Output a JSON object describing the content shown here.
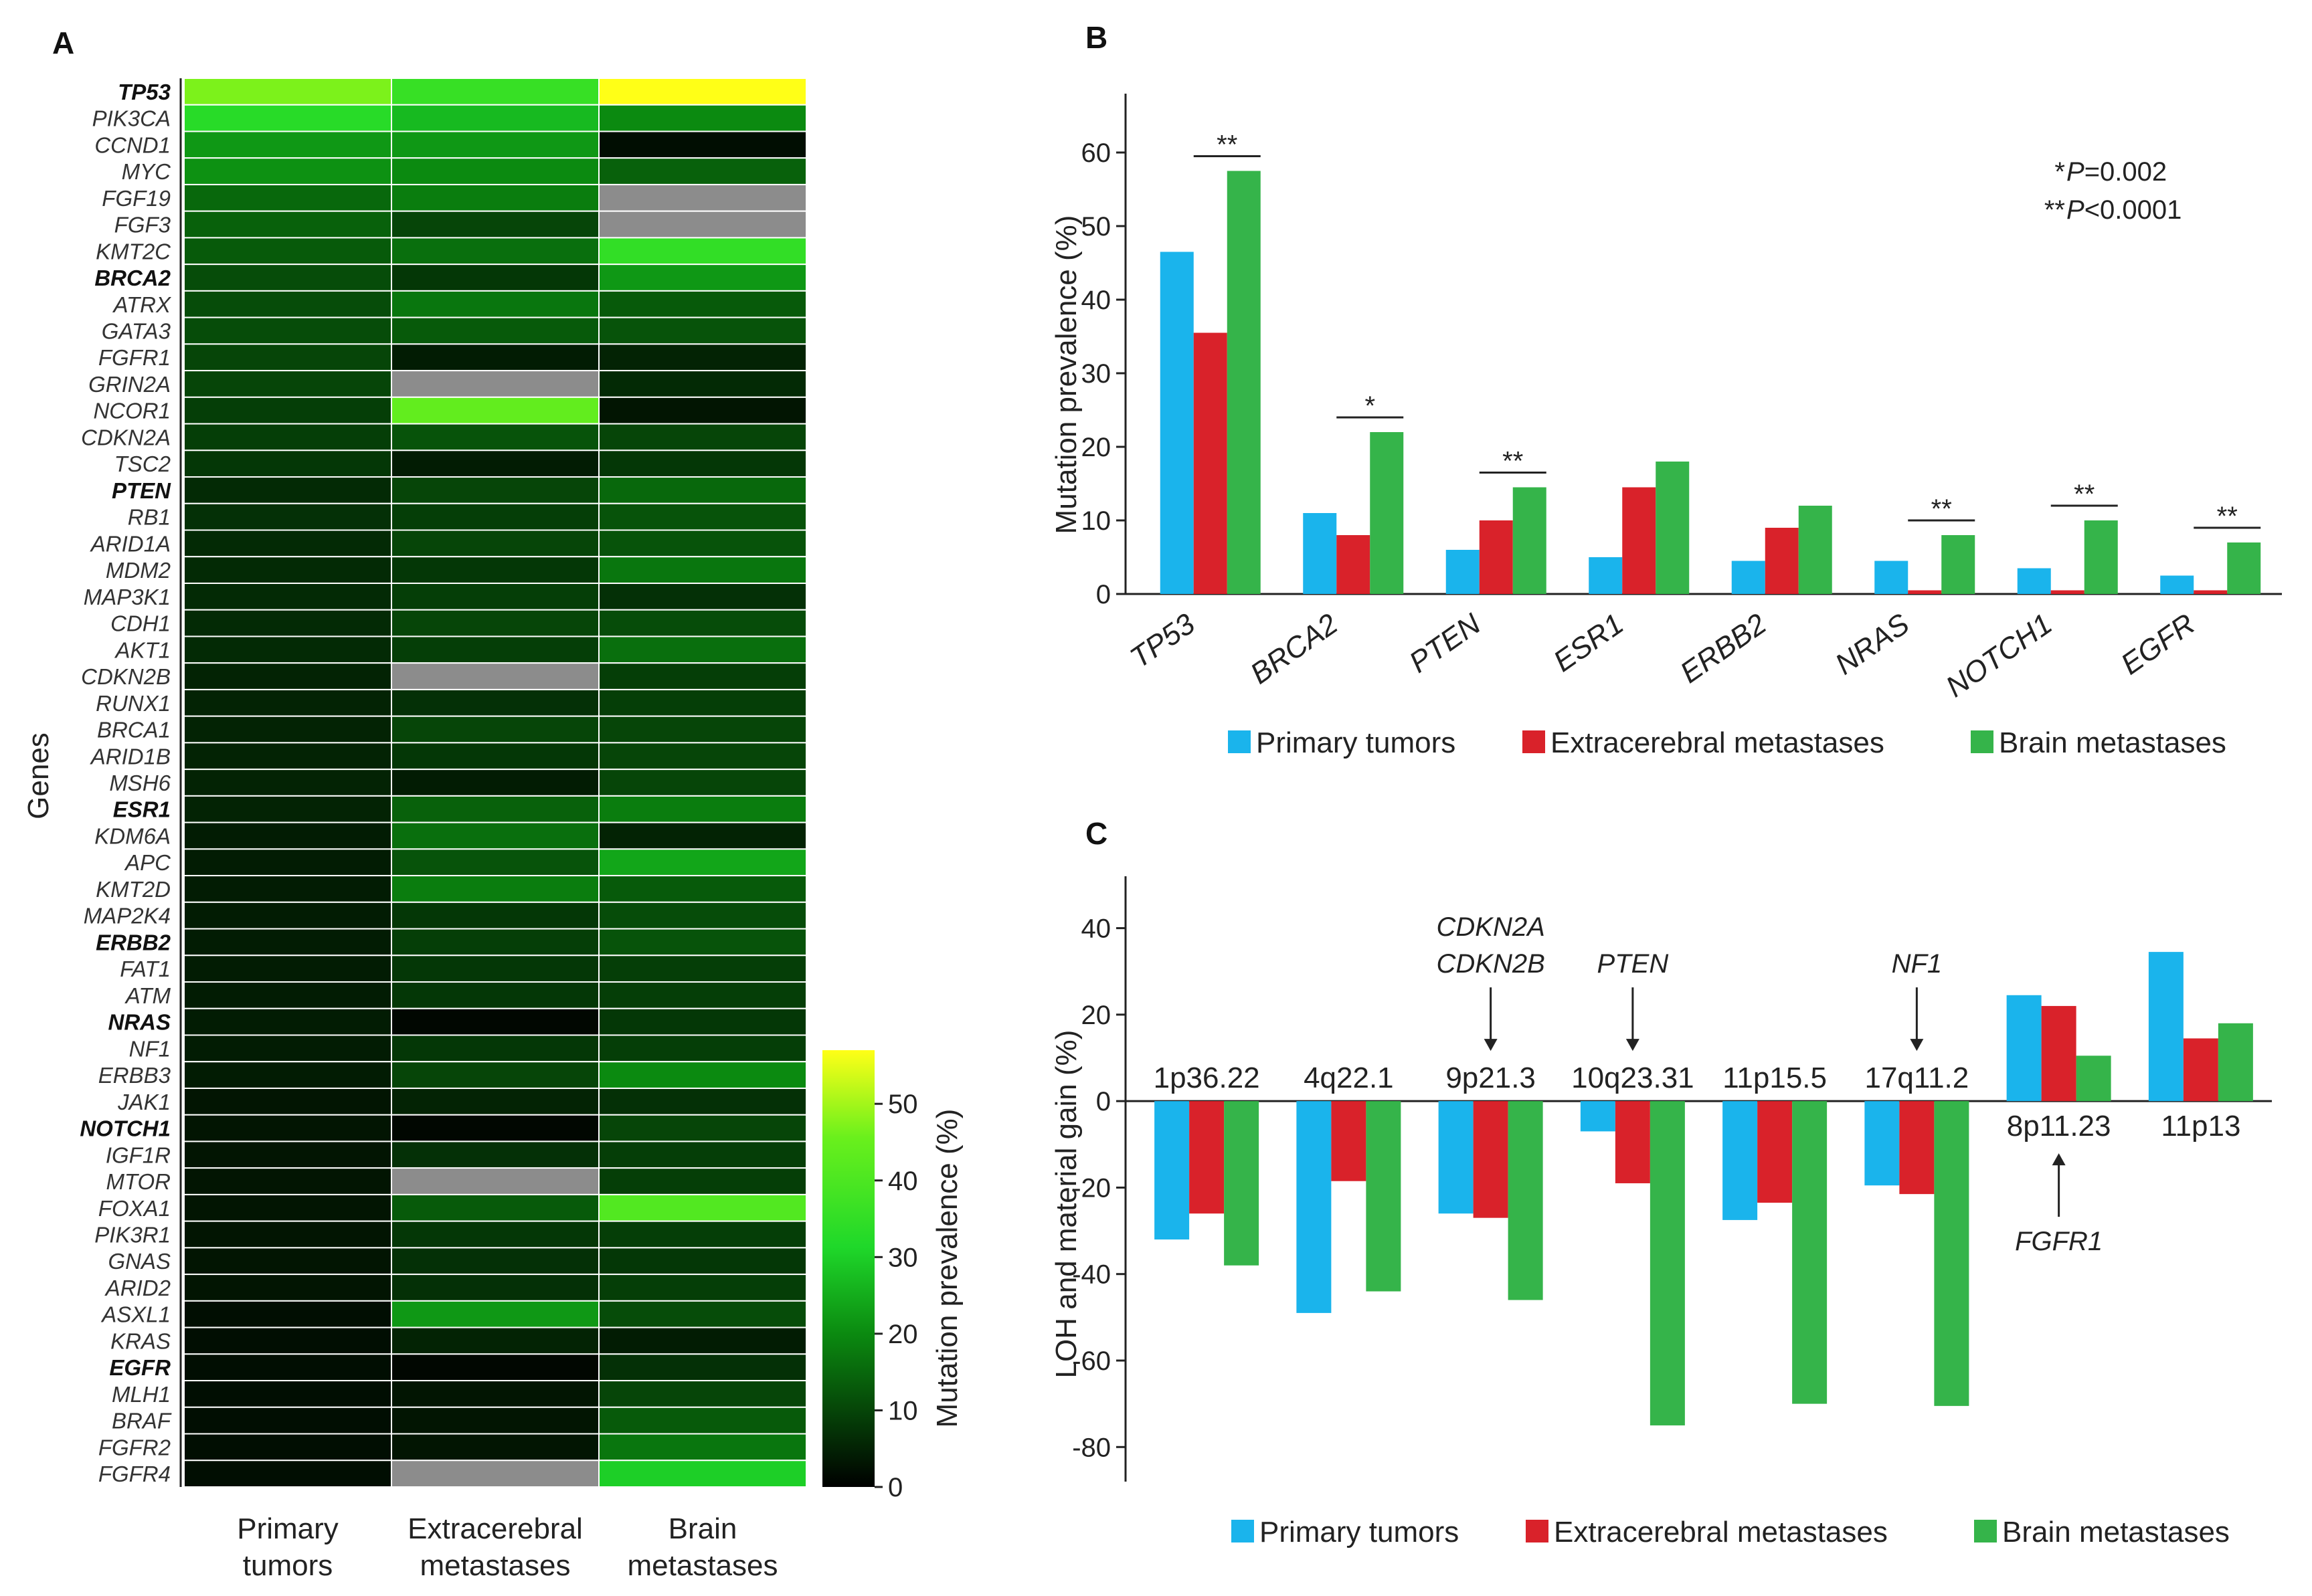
{
  "colors": {
    "primary": "#1ab4ec",
    "extracerebral": "#d9222a",
    "brain": "#35b44a",
    "missing": "#8c8c8c",
    "axis": "#222222"
  },
  "panelA": {
    "label": "A",
    "ylabel": "Genes",
    "columns": [
      "Primary\ntumors",
      "Extracerebral\nmetastases",
      "Brain\nmetastases"
    ],
    "colorbar": {
      "title": "Mutation prevalence (%)",
      "ticks": [
        0,
        10,
        20,
        30,
        40,
        50
      ],
      "max": 57
    },
    "genes": [
      {
        "name": "TP53",
        "bold": true,
        "v": [
          47,
          36,
          58
        ]
      },
      {
        "name": "PIK3CA",
        "bold": false,
        "v": [
          33,
          27,
          20
        ]
      },
      {
        "name": "CCND1",
        "bold": false,
        "v": [
          22,
          22,
          2
        ]
      },
      {
        "name": "MYC",
        "bold": false,
        "v": [
          21,
          20,
          14
        ]
      },
      {
        "name": "FGF19",
        "bold": false,
        "v": [
          15,
          18,
          null
        ]
      },
      {
        "name": "FGF3",
        "bold": false,
        "v": [
          14,
          10,
          null
        ]
      },
      {
        "name": "KMT2C",
        "bold": false,
        "v": [
          13,
          16,
          35
        ]
      },
      {
        "name": "BRCA2",
        "bold": true,
        "v": [
          11,
          8,
          22
        ]
      },
      {
        "name": "ATRX",
        "bold": false,
        "v": [
          11,
          17,
          13
        ]
      },
      {
        "name": "GATA3",
        "bold": false,
        "v": [
          11,
          13,
          12
        ]
      },
      {
        "name": "FGFR1",
        "bold": false,
        "v": [
          10,
          4,
          5
        ]
      },
      {
        "name": "GRIN2A",
        "bold": false,
        "v": [
          10,
          null,
          6
        ]
      },
      {
        "name": "NCOR1",
        "bold": false,
        "v": [
          9,
          44,
          3
        ]
      },
      {
        "name": "CDKN2A",
        "bold": false,
        "v": [
          9,
          12,
          10
        ]
      },
      {
        "name": "TSC2",
        "bold": false,
        "v": [
          8,
          4,
          8
        ]
      },
      {
        "name": "PTEN",
        "bold": true,
        "v": [
          6,
          10,
          15
        ]
      },
      {
        "name": "RB1",
        "bold": false,
        "v": [
          7,
          9,
          12
        ]
      },
      {
        "name": "ARID1A",
        "bold": false,
        "v": [
          6,
          10,
          12
        ]
      },
      {
        "name": "MDM2",
        "bold": false,
        "v": [
          6,
          8,
          17
        ]
      },
      {
        "name": "MAP3K1",
        "bold": false,
        "v": [
          6,
          9,
          7
        ]
      },
      {
        "name": "CDH1",
        "bold": false,
        "v": [
          6,
          10,
          11
        ]
      },
      {
        "name": "AKT1",
        "bold": false,
        "v": [
          6,
          9,
          16
        ]
      },
      {
        "name": "CDKN2B",
        "bold": false,
        "v": [
          5,
          null,
          9
        ]
      },
      {
        "name": "RUNX1",
        "bold": false,
        "v": [
          5,
          7,
          9
        ]
      },
      {
        "name": "BRCA1",
        "bold": false,
        "v": [
          5,
          10,
          10
        ]
      },
      {
        "name": "ARID1B",
        "bold": false,
        "v": [
          5,
          8,
          10
        ]
      },
      {
        "name": "MSH6",
        "bold": false,
        "v": [
          5,
          4,
          10
        ]
      },
      {
        "name": "ESR1",
        "bold": true,
        "v": [
          5,
          14,
          18
        ]
      },
      {
        "name": "KDM6A",
        "bold": false,
        "v": [
          4,
          16,
          5
        ]
      },
      {
        "name": "APC",
        "bold": false,
        "v": [
          4,
          12,
          24
        ]
      },
      {
        "name": "KMT2D",
        "bold": false,
        "v": [
          4,
          18,
          13
        ]
      },
      {
        "name": "MAP2K4",
        "bold": false,
        "v": [
          4,
          8,
          11
        ]
      },
      {
        "name": "ERBB2",
        "bold": true,
        "v": [
          4,
          9,
          12
        ]
      },
      {
        "name": "FAT1",
        "bold": false,
        "v": [
          4,
          8,
          9
        ]
      },
      {
        "name": "ATM",
        "bold": false,
        "v": [
          4,
          8,
          9
        ]
      },
      {
        "name": "NRAS",
        "bold": true,
        "v": [
          4,
          1,
          8
        ]
      },
      {
        "name": "NF1",
        "bold": false,
        "v": [
          4,
          8,
          9
        ]
      },
      {
        "name": "ERBB3",
        "bold": false,
        "v": [
          4,
          10,
          20
        ]
      },
      {
        "name": "JAK1",
        "bold": false,
        "v": [
          3,
          5,
          7
        ]
      },
      {
        "name": "NOTCH1",
        "bold": true,
        "v": [
          3,
          1,
          10
        ]
      },
      {
        "name": "IGF1R",
        "bold": false,
        "v": [
          3,
          7,
          9
        ]
      },
      {
        "name": "MTOR",
        "bold": false,
        "v": [
          3,
          null,
          9
        ]
      },
      {
        "name": "FOXA1",
        "bold": false,
        "v": [
          3,
          13,
          41
        ]
      },
      {
        "name": "PIK3R1",
        "bold": false,
        "v": [
          3,
          8,
          9
        ]
      },
      {
        "name": "GNAS",
        "bold": false,
        "v": [
          3,
          7,
          8
        ]
      },
      {
        "name": "ARID2",
        "bold": false,
        "v": [
          3,
          7,
          9
        ]
      },
      {
        "name": "ASXL1",
        "bold": false,
        "v": [
          2,
          22,
          11
        ]
      },
      {
        "name": "KRAS",
        "bold": false,
        "v": [
          2,
          5,
          4
        ]
      },
      {
        "name": "EGFR",
        "bold": true,
        "v": [
          2,
          1,
          7
        ]
      },
      {
        "name": "MLH1",
        "bold": false,
        "v": [
          2,
          3,
          10
        ]
      },
      {
        "name": "BRAF",
        "bold": false,
        "v": [
          2,
          3,
          13
        ]
      },
      {
        "name": "FGFR2",
        "bold": false,
        "v": [
          2,
          3,
          17
        ]
      },
      {
        "name": "FGFR4",
        "bold": false,
        "v": [
          2,
          null,
          30
        ]
      }
    ]
  },
  "chart_data": [
    {
      "type": "heatmap",
      "panel": "A",
      "ylabel": "Genes",
      "colorbar_label": "Mutation prevalence (%)",
      "note": "values per gene listed in panelA.genes; null = no data (grey)"
    },
    {
      "type": "bar",
      "panel": "B",
      "label": "B",
      "ylabel": "Mutation prevalence (%)",
      "ylim": [
        0,
        68
      ],
      "yticks": [
        0,
        10,
        20,
        30,
        40,
        50,
        60
      ],
      "categories": [
        "TP53",
        "BRCA2",
        "PTEN",
        "ESR1",
        "ERBB2",
        "NRAS",
        "NOTCH1",
        "EGFR"
      ],
      "series": [
        {
          "name": "Primary tumors",
          "values": [
            46.5,
            11,
            6,
            5,
            4.5,
            4.5,
            3.5,
            2.5
          ]
        },
        {
          "name": "Extracerebral metastases",
          "values": [
            35.5,
            8,
            10,
            14.5,
            9,
            0.5,
            0.5,
            0.5
          ]
        },
        {
          "name": "Brain metastases",
          "values": [
            57.5,
            22,
            14.5,
            18,
            12,
            8,
            10,
            7
          ]
        }
      ],
      "significance": [
        "**",
        "*",
        "**",
        "",
        "",
        "**",
        "**",
        "**"
      ],
      "legend_note": [
        "* P=0.002",
        "** P<0.0001"
      ]
    },
    {
      "type": "bar",
      "panel": "C",
      "label": "C",
      "ylabel": "LOH and material gain (%)",
      "ylim": [
        -88,
        52
      ],
      "yticks": [
        -80,
        -60,
        -40,
        -20,
        0,
        20,
        40
      ],
      "categories": [
        "1p36.22",
        "4q22.1",
        "9p21.3",
        "10q23.31",
        "11p15.5",
        "17q11.2",
        "8p11.23",
        "11p13"
      ],
      "series": [
        {
          "name": "Primary tumors",
          "values": [
            -32,
            -49,
            -26,
            -7,
            -27.5,
            -19.5,
            24.5,
            34.5
          ]
        },
        {
          "name": "Extracerebral metastases",
          "values": [
            -26,
            -18.5,
            -27,
            -19,
            -23.5,
            -21.5,
            22,
            14.5
          ]
        },
        {
          "name": "Brain metastases",
          "values": [
            -38,
            -44,
            -46,
            -75,
            -70,
            -70.5,
            10.5,
            18
          ]
        }
      ],
      "gene_annotations": [
        {
          "category": "9p21.3",
          "genes": [
            "CDKN2A",
            "CDKN2B"
          ]
        },
        {
          "category": "10q23.31",
          "genes": [
            "PTEN"
          ]
        },
        {
          "category": "17q11.2",
          "genes": [
            "NF1"
          ]
        },
        {
          "category": "8p11.23",
          "genes": [
            "FGFR1"
          ]
        }
      ]
    }
  ],
  "labels": {
    "panelB": "B",
    "panelC": "C",
    "ylabelB": "Mutation prevalence (%)",
    "ylabelC": "LOH and material gain (%)",
    "sig1_star": "*",
    "sig1_text": "=0.002",
    "sig2_star": "**",
    "sig2_text": "<0.0001",
    "p": "P",
    "legendB": [
      "Primary tumors",
      "Extracerebral metastases",
      "Brain metastases"
    ],
    "legendC": [
      "Primary tumors",
      "Extracerebral metastases",
      "Brain metastases"
    ]
  }
}
